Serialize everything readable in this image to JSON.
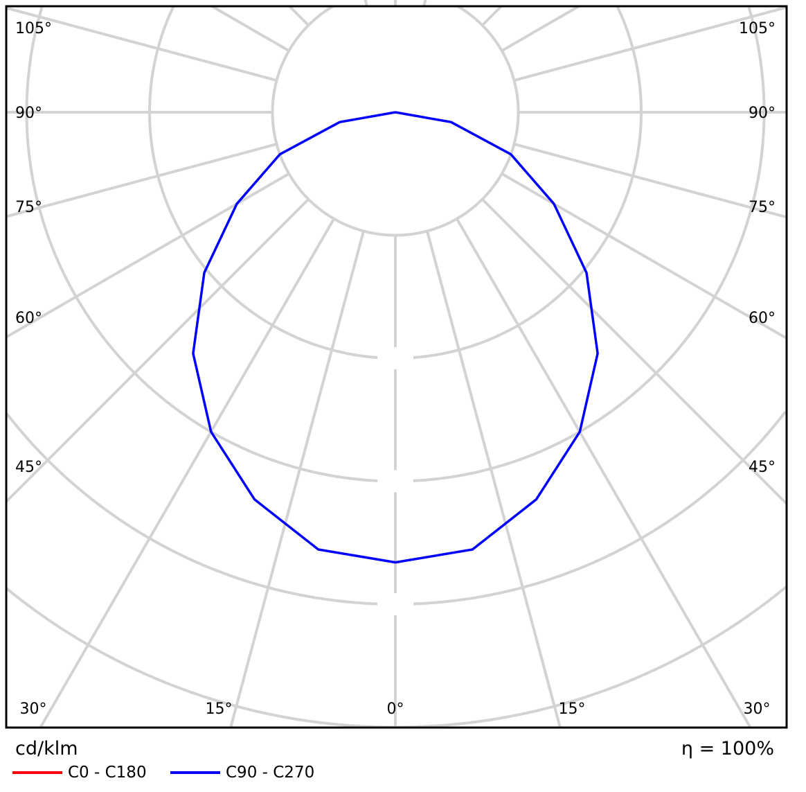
{
  "chart_data": {
    "type": "polar",
    "unit_label": "cd/klm",
    "efficiency_label": "η = 100%",
    "angle_labels_left": [
      "105°",
      "90°",
      "75°",
      "60°",
      "45°"
    ],
    "angle_labels_right": [
      "105°",
      "90°",
      "75°",
      "60°",
      "45°"
    ],
    "angle_labels_bottom": [
      "30°",
      "15°",
      "0°",
      "15°",
      "30°"
    ],
    "grid": true,
    "angles_deg": [
      0,
      10,
      20,
      30,
      40,
      50,
      60,
      70,
      80,
      90
    ],
    "intensity_unit_note": "values in grid-ring steps (ring value labels not shown)",
    "series": [
      {
        "name": "C0 - C180",
        "color": "#ff0000",
        "values": [
          3.66,
          3.61,
          3.35,
          3.0,
          2.56,
          2.03,
          1.49,
          1.0,
          0.46,
          0
        ]
      },
      {
        "name": "C90 - C270",
        "color": "#0000ff",
        "values": [
          3.66,
          3.61,
          3.35,
          3.0,
          2.56,
          2.03,
          1.49,
          1.0,
          0.46,
          0
        ]
      }
    ]
  }
}
